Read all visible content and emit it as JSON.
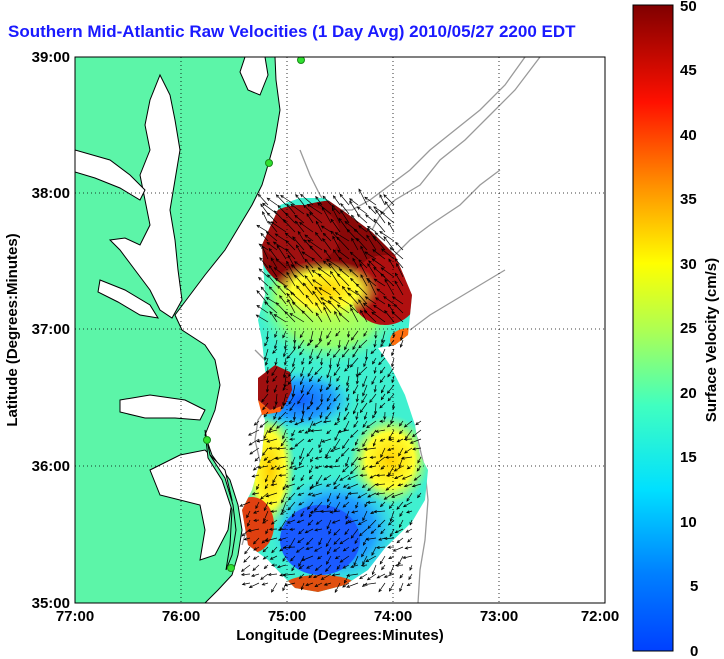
{
  "title": "Southern Mid-Atlantic Raw Velocities (1 Day Avg) 2010/05/27 2200 EDT",
  "map": {
    "xlabel": "Longitude (Degrees:Minutes)",
    "ylabel": "Latitude (Degrees:Minutes)",
    "xticks": [
      "77:00",
      "76:00",
      "75:00",
      "74:00",
      "73:00",
      "72:00"
    ],
    "yticks": [
      "39:00",
      "38:00",
      "37:00",
      "36:00",
      "35:00"
    ],
    "xlim": [
      -77,
      -72
    ],
    "ylim": [
      35,
      39
    ],
    "grid": "dotted",
    "land_color": "#5cf5a8",
    "coast_color": "#000000"
  },
  "colorbar": {
    "label": "Surface Velocity (cm/s)",
    "ticks": [
      "50",
      "45",
      "40",
      "35",
      "30",
      "25",
      "20",
      "15",
      "10",
      "5",
      "0"
    ],
    "min": 0,
    "max": 50
  }
}
